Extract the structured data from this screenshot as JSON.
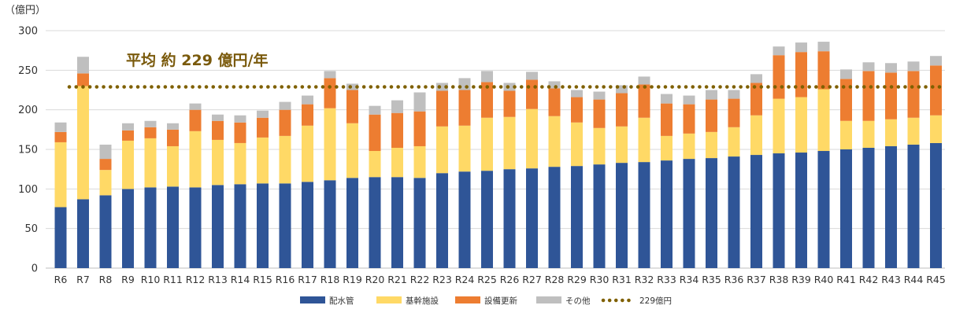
{
  "chart_data": {
    "type": "bar",
    "stacked": true,
    "unit_label": "（億円）",
    "categories": [
      "R6",
      "R7",
      "R8",
      "R9",
      "R10",
      "R11",
      "R12",
      "R13",
      "R14",
      "R15",
      "R16",
      "R17",
      "R18",
      "R19",
      "R20",
      "R21",
      "R22",
      "R23",
      "R24",
      "R25",
      "R26",
      "R27",
      "R28",
      "R29",
      "R30",
      "R31",
      "R32",
      "R33",
      "R34",
      "R35",
      "R36",
      "R37",
      "R38",
      "R39",
      "R40",
      "R41",
      "R42",
      "R43",
      "R44",
      "R45"
    ],
    "series": [
      {
        "name": "配水管",
        "color": "#2f5597",
        "values": [
          77,
          87,
          92,
          100,
          102,
          103,
          102,
          105,
          106,
          107,
          107,
          109,
          111,
          114,
          115,
          115,
          114,
          120,
          122,
          123,
          125,
          126,
          128,
          129,
          131,
          133,
          134,
          136,
          138,
          139,
          141,
          143,
          145,
          146,
          148,
          150,
          152,
          154,
          156,
          158
        ]
      },
      {
        "name": "基幹施設",
        "color": "#ffd966",
        "values": [
          82,
          143,
          32,
          61,
          62,
          51,
          71,
          57,
          52,
          58,
          60,
          71,
          91,
          69,
          33,
          37,
          40,
          59,
          58,
          67,
          66,
          75,
          64,
          55,
          46,
          46,
          56,
          31,
          32,
          33,
          37,
          50,
          69,
          70,
          78,
          36,
          34,
          34,
          34,
          35
        ]
      },
      {
        "name": "設備更新",
        "color": "#ed7d31",
        "values": [
          13,
          16,
          14,
          13,
          14,
          21,
          27,
          24,
          26,
          25,
          33,
          27,
          38,
          42,
          46,
          44,
          44,
          45,
          45,
          45,
          33,
          37,
          35,
          32,
          36,
          42,
          42,
          41,
          37,
          41,
          36,
          41,
          55,
          57,
          48,
          53,
          63,
          59,
          59,
          63
        ]
      },
      {
        "name": "その他",
        "color": "#bfbfbf",
        "values": [
          12,
          21,
          18,
          9,
          8,
          8,
          8,
          8,
          9,
          9,
          10,
          11,
          9,
          8,
          11,
          16,
          24,
          10,
          15,
          14,
          10,
          10,
          9,
          9,
          10,
          10,
          10,
          12,
          11,
          12,
          11,
          11,
          11,
          12,
          12,
          12,
          11,
          12,
          12,
          12
        ]
      }
    ],
    "average": {
      "name": "229億円",
      "value": 229,
      "color": "#7f6000",
      "label_prefix": "平均 約",
      "label_value": "229",
      "label_suffix": "億円/年"
    },
    "ylim": [
      0,
      300
    ],
    "yticks": [
      0,
      50,
      100,
      150,
      200,
      250,
      300
    ],
    "grid": true,
    "legend": "bottom"
  }
}
